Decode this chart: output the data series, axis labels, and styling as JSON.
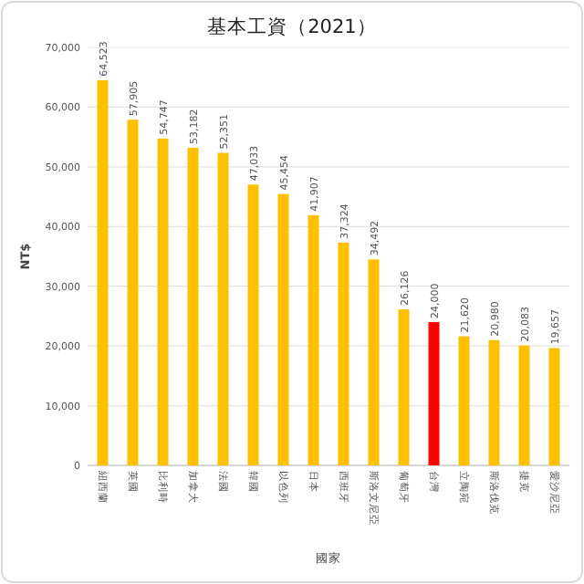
{
  "chart_data": {
    "type": "bar",
    "title": "基本工資（2021）",
    "xlabel": "國家",
    "ylabel": "NT$",
    "categories": [
      "紐西蘭",
      "英國",
      "比利時",
      "加拿大",
      "法國",
      "韓國",
      "以色列",
      "日本",
      "西班牙",
      "斯洛文尼亞",
      "葡萄牙",
      "台灣",
      "立陶宛",
      "斯洛伐克",
      "捷克",
      "愛沙尼亞"
    ],
    "values": [
      64523,
      57905,
      54747,
      53182,
      52351,
      47033,
      45454,
      41907,
      37324,
      34492,
      26126,
      24000,
      21620,
      20980,
      20083,
      19657
    ],
    "colors": [
      "#ffc000",
      "#ffc000",
      "#ffc000",
      "#ffc000",
      "#ffc000",
      "#ffc000",
      "#ffc000",
      "#ffc000",
      "#ffc000",
      "#ffc000",
      "#ffc000",
      "#ff0000",
      "#ffc000",
      "#ffc000",
      "#ffc000",
      "#ffc000"
    ],
    "ylim": [
      0,
      70000
    ],
    "yticks": [
      {
        "value": 0,
        "label": "0"
      },
      {
        "value": 10000,
        "label": "10,000"
      },
      {
        "value": 20000,
        "label": "20,000"
      },
      {
        "value": 30000,
        "label": "30,000"
      },
      {
        "value": 40000,
        "label": "40,000"
      },
      {
        "value": 50000,
        "label": "50,000"
      },
      {
        "value": 60000,
        "label": "60,000"
      },
      {
        "value": 70000,
        "label": "70,000"
      }
    ],
    "value_labels": [
      "64,523",
      "57,905",
      "54,747",
      "53,182",
      "52,351",
      "47,033",
      "45,454",
      "41,907",
      "37,324",
      "34,492",
      "26,126",
      "24,000",
      "21,620",
      "20,980",
      "20,083",
      "19,657"
    ],
    "grid": "y"
  }
}
